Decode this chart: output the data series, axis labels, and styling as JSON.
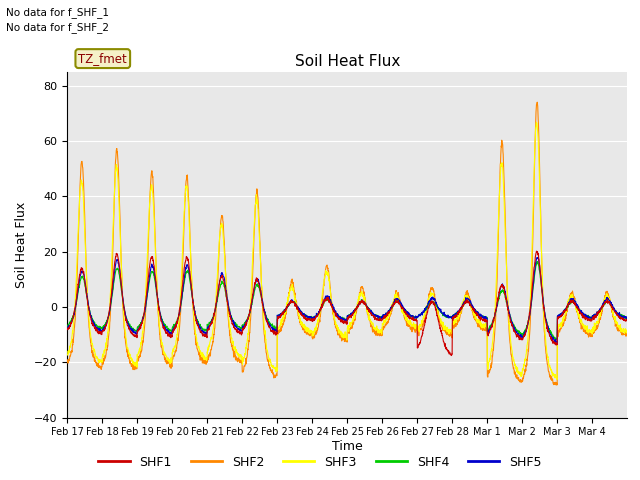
{
  "title": "Soil Heat Flux",
  "ylabel": "Soil Heat Flux",
  "xlabel": "Time",
  "ylim": [
    -40,
    85
  ],
  "yticks": [
    -40,
    -20,
    0,
    20,
    40,
    60,
    80
  ],
  "bg_color": "#e8e8e8",
  "text_no_data_1": "No data for f_SHF_1",
  "text_no_data_2": "No data for f_SHF_2",
  "tz_label": "TZ_fmet",
  "xtick_labels": [
    "Feb 17",
    "Feb 18",
    "Feb 19",
    "Feb 20",
    "Feb 21",
    "Feb 22",
    "Feb 23",
    "Feb 24",
    "Feb 25",
    "Feb 26",
    "Feb 27",
    "Feb 28",
    "Mar 1",
    "Mar 2",
    "Mar 3",
    "Mar 4"
  ],
  "colors": {
    "SHF1": "#cc0000",
    "SHF2": "#ff8800",
    "SHF3": "#ffff00",
    "SHF4": "#00cc00",
    "SHF5": "#0000cc"
  },
  "line_width": 0.8,
  "shf2_day_peaks": [
    53,
    57,
    49,
    47,
    33,
    42,
    9,
    15,
    7,
    5,
    7,
    5,
    60,
    74,
    5,
    5
  ],
  "shf2_night_base": [
    -22,
    -22,
    -21,
    -20,
    -20,
    -25,
    -10,
    -12,
    -10,
    -8,
    -10,
    -8,
    -27,
    -28,
    -10,
    -10
  ],
  "shf3_day_peaks": [
    46,
    51,
    44,
    44,
    30,
    39,
    7,
    13,
    5,
    4,
    5,
    4,
    52,
    67,
    4,
    4
  ],
  "shf3_night_base": [
    -20,
    -21,
    -20,
    -19,
    -18,
    -23,
    -9,
    -11,
    -9,
    -7,
    -9,
    -7,
    -25,
    -26,
    -9,
    -9
  ],
  "shf1_day_peaks": [
    14,
    19,
    18,
    18,
    11,
    10,
    2,
    3,
    2,
    2,
    2,
    2,
    8,
    20,
    2,
    2
  ],
  "shf1_night_base": [
    -10,
    -11,
    -11,
    -11,
    -10,
    -10,
    -5,
    -6,
    -5,
    -5,
    -18,
    -5,
    -12,
    -14,
    -5,
    -5
  ],
  "shf4_day_peaks": [
    11,
    14,
    13,
    13,
    9,
    8,
    2,
    3,
    2,
    2,
    2,
    2,
    6,
    16,
    2,
    2
  ],
  "shf4_night_base": [
    -8,
    -9,
    -9,
    -9,
    -8,
    -8,
    -4,
    -5,
    -4,
    -4,
    -4,
    -4,
    -10,
    -12,
    -4,
    -4
  ],
  "shf5_day_peaks": [
    13,
    17,
    15,
    15,
    12,
    10,
    2,
    4,
    2,
    3,
    3,
    3,
    8,
    18,
    3,
    3
  ],
  "shf5_night_base": [
    -9,
    -10,
    -10,
    -10,
    -9,
    -9,
    -4,
    -5,
    -4,
    -4,
    -4,
    -4,
    -11,
    -13,
    -4,
    -4
  ]
}
